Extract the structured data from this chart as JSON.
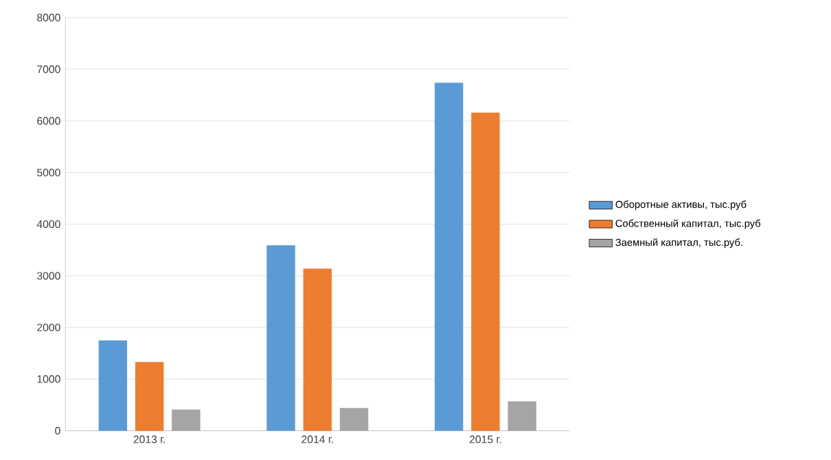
{
  "chart_data": {
    "type": "bar",
    "categories": [
      "2013 г.",
      "2014 г.",
      "2015 г."
    ],
    "series": [
      {
        "name": "Оборотные активы, тыс.руб",
        "color": "#5b9bd5",
        "values": [
          1750,
          3590,
          6740
        ]
      },
      {
        "name": "Собственный капитал, тыс.руб",
        "color": "#ed7d31",
        "values": [
          1330,
          3140,
          6160
        ]
      },
      {
        "name": "Заемный капитал, тыс.руб.",
        "color": "#a5a5a5",
        "values": [
          410,
          440,
          570
        ]
      }
    ],
    "ylim": [
      0,
      8000
    ],
    "yticks": [
      0,
      1000,
      2000,
      3000,
      4000,
      5000,
      6000,
      7000,
      8000
    ],
    "grid": "y",
    "legend": "right"
  }
}
